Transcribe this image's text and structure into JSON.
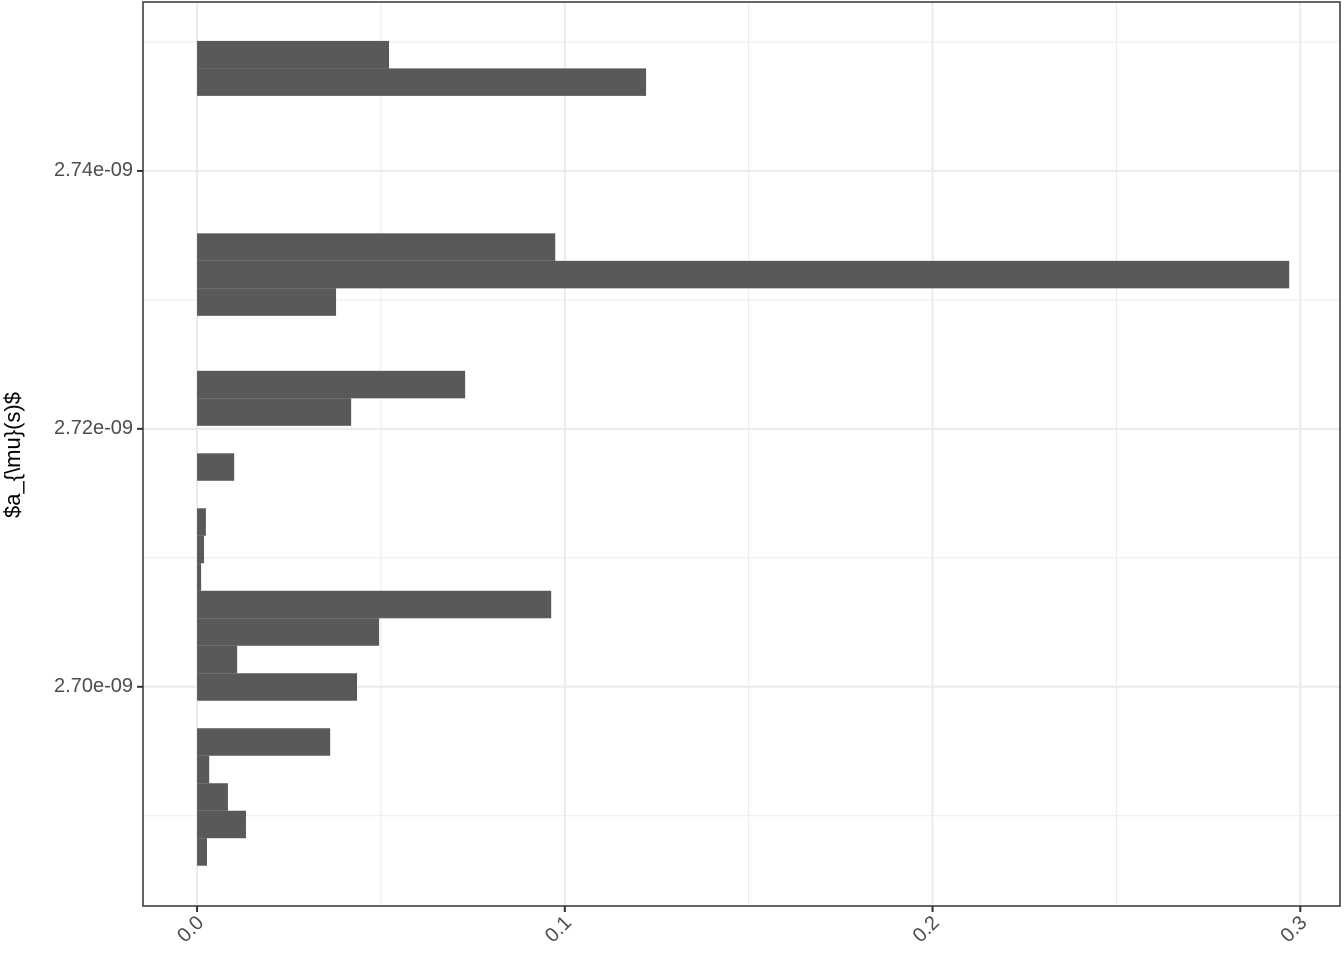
{
  "chart_data": {
    "type": "histogram",
    "orientation": "horizontal",
    "ylabel": "$a_{\\mu}(s)$",
    "bins": [
      2.686124e-09,
      2.688256e-09,
      2.690388e-09,
      2.69252e-09,
      2.694652e-09,
      2.696784e-09,
      2.698916e-09,
      2.701048e-09,
      2.70318e-09,
      2.705312e-09,
      2.707444e-09,
      2.709576e-09,
      2.711708e-09,
      2.71384e-09,
      2.715972e-09,
      2.718104e-09,
      2.720236e-09,
      2.722368e-09,
      2.7245e-09,
      2.726632e-09,
      2.728764e-09,
      2.730896e-09,
      2.733028e-09,
      2.73516e-09,
      2.737292e-09,
      2.739424e-09,
      2.741556e-09,
      2.743688e-09,
      2.74582e-09,
      2.747952e-09,
      2.750084e-09
    ],
    "values": [
      0.0027,
      0.0133,
      0.0084,
      0.0033,
      0.0362,
      0,
      0.0435,
      0.0109,
      0.0495,
      0.0963,
      0.0011,
      0.0019,
      0.0024,
      0,
      0.0101,
      0,
      0.0419,
      0.0729,
      0,
      0,
      0.0378,
      0.297,
      0.0974,
      0,
      0,
      0,
      0,
      0,
      0.1221,
      0.0522
    ],
    "color": "#595959",
    "xlim": [
      -0.0147,
      0.3108
    ],
    "xticks": [
      {
        "value": 0,
        "label": "0.0"
      },
      0.1,
      0.2,
      0.3
    ],
    "ylim": [
      2.683e-09,
      2.7531e-09
    ],
    "yticks": [
      {
        "value": 2.7e-09,
        "label": "2.70e-09"
      },
      {
        "value": 2.72e-09,
        "label": "2.72e-09"
      },
      {
        "value": 2.74e-09,
        "label": "2.74e-09"
      }
    ],
    "grid": true
  }
}
